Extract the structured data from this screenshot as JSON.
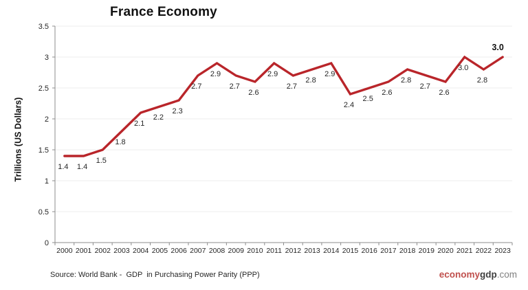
{
  "chart_data": {
    "type": "line",
    "title": "France Economy",
    "xlabel": "",
    "ylabel": "Trillions (US Dollars)",
    "categories": [
      "2000",
      "2001",
      "2002",
      "2003",
      "2004",
      "2005",
      "2006",
      "2007",
      "2008",
      "2009",
      "2010",
      "2011",
      "2012",
      "2013",
      "2014",
      "2015",
      "2016",
      "2017",
      "2018",
      "2019",
      "2020",
      "2021",
      "2022",
      "2023"
    ],
    "values": [
      1.4,
      1.4,
      1.5,
      1.8,
      2.1,
      2.2,
      2.3,
      2.7,
      2.9,
      2.7,
      2.6,
      2.9,
      2.7,
      2.8,
      2.9,
      2.4,
      2.5,
      2.6,
      2.8,
      2.7,
      2.6,
      3.0,
      2.8,
      3.0
    ],
    "point_labels": [
      "1.4",
      "1.4",
      "1.5",
      "1.8",
      "2.1",
      "2.2",
      "2.3",
      "2.7",
      "2.9",
      "2.7",
      "2.6",
      "2.9",
      "2.7",
      "2.8",
      "2.9",
      "2.4",
      "2.5",
      "2.6",
      "2.8",
      "2.7",
      "2.6",
      "3.0",
      "2.8",
      "3.0"
    ],
    "ylim": [
      0,
      3.5
    ],
    "yticks": [
      0,
      0.5,
      1,
      1.5,
      2,
      2.5,
      3,
      3.5
    ],
    "ytick_labels": [
      "0",
      "0.5",
      "1",
      "1.5",
      "2",
      "2.5",
      "3",
      "3.5"
    ],
    "grid": true,
    "legend": "none",
    "line_color": "#B9252A",
    "last_point_emphasized": true
  },
  "source": {
    "text": "Source: World Bank -  GDP  in Purchasing Power Parity (PPP)"
  },
  "logo": {
    "economy": "economy",
    "gdp": "gdp",
    "domain": ".com"
  },
  "colors": {
    "line": "#B9252A",
    "grid": "#ECECEC",
    "axis": "#8C8C8C",
    "tick_label": "#262626",
    "data_label": "#262626",
    "emphasized_label": "#111111",
    "title": "#111111",
    "logo_red": "#C0504D",
    "logo_dark": "#3F3F3F",
    "logo_gray": "#808080"
  }
}
